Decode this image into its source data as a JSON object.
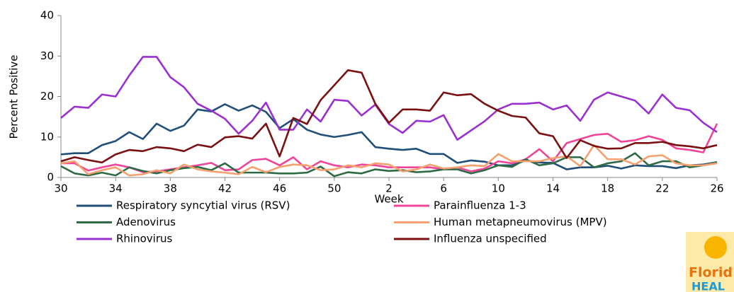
{
  "chart_data": {
    "type": "line",
    "x_label": "Week",
    "y_label": "Percent Positive",
    "categories": [
      "30",
      null,
      null,
      null,
      "34",
      null,
      null,
      null,
      "38",
      null,
      null,
      null,
      "42",
      null,
      null,
      null,
      "46",
      null,
      null,
      null,
      "50",
      null,
      null,
      null,
      "2",
      null,
      null,
      null,
      "6",
      null,
      null,
      null,
      "10",
      null,
      null,
      null,
      "14",
      null,
      null,
      null,
      "18",
      null,
      null,
      null,
      "22",
      null,
      null,
      null,
      "26"
    ],
    "ylim": [
      0,
      40
    ],
    "yticks": [
      0,
      10,
      20,
      30,
      40
    ],
    "grid": false,
    "series": [
      {
        "name": "Respiratory syncytial virus (RSV)",
        "color": "#1f4e79",
        "values": [
          5.7,
          6,
          6,
          8,
          9,
          11.2,
          9.5,
          13.3,
          11.5,
          12.8,
          16.8,
          16.3,
          18.1,
          16.5,
          17.8,
          16.2,
          12.2,
          14.4,
          11.8,
          10.6,
          10,
          10.5,
          11.2,
          7.5,
          7.1,
          6.8,
          7.1,
          5.8,
          5.8,
          3.6,
          4.2,
          3.9,
          3,
          3,
          4.2,
          3.7,
          3.6,
          2,
          2.5,
          2.5,
          2.9,
          2.2,
          3,
          2.8,
          2.8,
          2.3,
          3,
          3.2,
          3.8
        ]
      },
      {
        "name": "Parainfluenza 1-3",
        "color": "#f0449a",
        "values": [
          3.5,
          3.5,
          1.7,
          2.5,
          3.2,
          2.5,
          1.3,
          1.5,
          2,
          2.5,
          3,
          3.6,
          1.8,
          2,
          4.3,
          4.6,
          3,
          5,
          2,
          4,
          3,
          2.5,
          3.2,
          3,
          2.5,
          2.5,
          2.5,
          2.5,
          2,
          2.5,
          1.5,
          2.2,
          4,
          3.5,
          4.5,
          7,
          4,
          8.5,
          9.5,
          10.5,
          10.8,
          8.8,
          9.2,
          10.2,
          9.3,
          7.2,
          6.8,
          6.2,
          13.3
        ]
      },
      {
        "name": "Adenovirus",
        "color": "#2e6b45",
        "values": [
          2.8,
          1,
          0.5,
          1.2,
          0.5,
          2.5,
          1.6,
          1,
          1.8,
          2.3,
          2.6,
          1.8,
          3.5,
          1.2,
          1.2,
          1.2,
          1,
          1,
          1.2,
          2.7,
          0.3,
          1.3,
          1,
          2,
          1.6,
          1.8,
          1.3,
          1.5,
          2,
          2,
          1,
          1.8,
          3,
          2.6,
          4.5,
          3,
          3.5,
          5,
          5,
          2.5,
          3.5,
          4,
          6,
          3,
          4,
          4,
          2.5,
          3,
          3.8
        ]
      },
      {
        "name": "Human metapneumovirus (MPV)",
        "color": "#f5a06e",
        "values": [
          3.5,
          4,
          0.8,
          1.8,
          2.5,
          0.5,
          0.8,
          1.8,
          1,
          3.2,
          2,
          1.5,
          1.2,
          0.8,
          2.6,
          1.3,
          2.6,
          3.2,
          3,
          1.8,
          2,
          3,
          2.5,
          3.5,
          3.2,
          1.5,
          2,
          3.2,
          2.2,
          2.5,
          3,
          2.8,
          5.8,
          4,
          4,
          4,
          4.8,
          5.2,
          2.8,
          8,
          4.5,
          4.5,
          3.2,
          5.2,
          5.5,
          3.5,
          3,
          3,
          3.5
        ]
      },
      {
        "name": "Rhinovirus",
        "color": "#9b30d0",
        "values": [
          14.7,
          17.5,
          17.2,
          20.5,
          20,
          25.2,
          29.8,
          29.8,
          24.8,
          22.3,
          18.2,
          16.5,
          14.5,
          10.8,
          14,
          18.5,
          11.8,
          11.8,
          16.8,
          13.8,
          19.2,
          18.9,
          15.3,
          18,
          13.2,
          11,
          14,
          13.8,
          15.4,
          9.3,
          11.6,
          13.9,
          16.8,
          18.2,
          18.2,
          18.5,
          16.8,
          17.8,
          14,
          19.2,
          21,
          20,
          19,
          15.8,
          20.5,
          17.2,
          16.6,
          13.5,
          11.2
        ]
      },
      {
        "name": "Influenza unspecified",
        "color": "#7b1010",
        "values": [
          4,
          5,
          4.3,
          3.7,
          5.7,
          6.8,
          6.5,
          7.5,
          7.2,
          6.5,
          8.1,
          7.5,
          9.9,
          10.2,
          9.6,
          13.3,
          5.2,
          14.7,
          13.2,
          19.1,
          22.8,
          26.5,
          25.9,
          18.2,
          13.5,
          16.8,
          16.8,
          16.5,
          21,
          20.3,
          20.6,
          18.2,
          16.5,
          15.2,
          14.8,
          10.9,
          10.2,
          4.8,
          9.2,
          7.8,
          7.1,
          7.2,
          8.5,
          8.5,
          8.8,
          8,
          7.7,
          7.2,
          8
        ]
      }
    ]
  },
  "logo": {
    "line1": "Florid",
    "line2": "HEAL"
  }
}
